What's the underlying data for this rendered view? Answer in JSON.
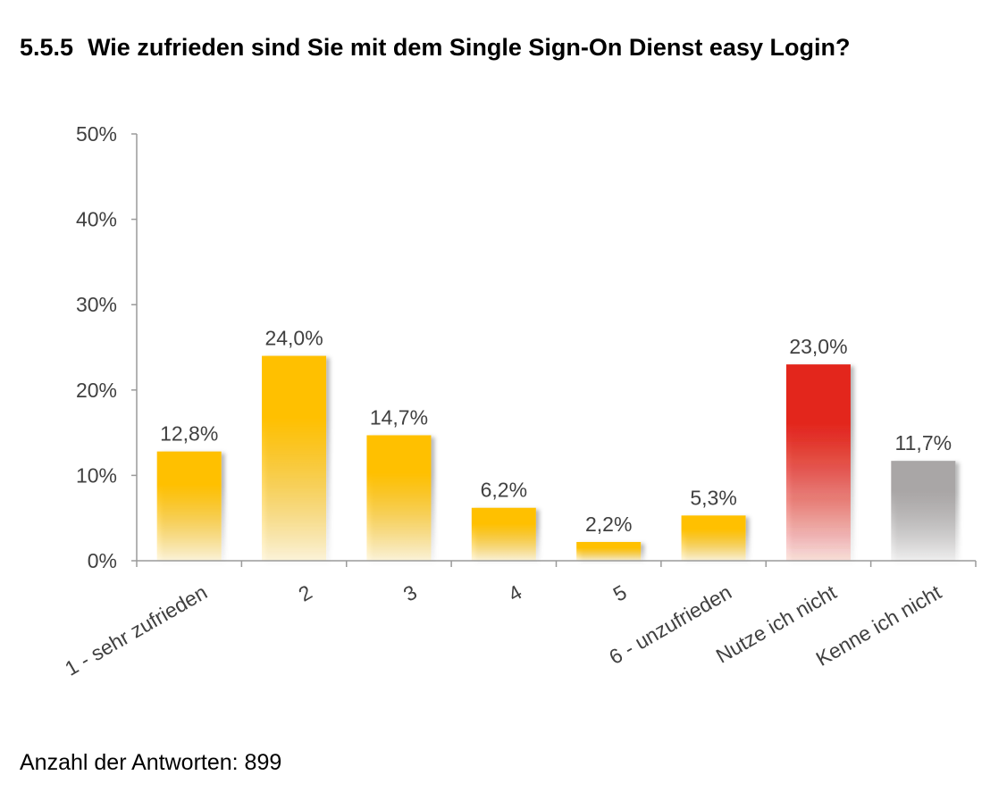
{
  "title": {
    "number": "5.5.5",
    "text": "Wie zufrieden sind Sie mit dem Single Sign-On Dienst easy Login?"
  },
  "footer": {
    "label": "Anzahl der Antworten: 899"
  },
  "colors": {
    "rating": "#FFC000",
    "not_used": "#E3251B",
    "unknown": "#A9A6A6",
    "axis": "#9A9A9A",
    "text": "#404040"
  },
  "chart_data": {
    "type": "bar",
    "title": "Wie zufrieden sind Sie mit dem Single Sign-On Dienst easy Login?",
    "xlabel": "",
    "ylabel": "",
    "categories": [
      "1 - sehr zufrieden",
      "2",
      "3",
      "4",
      "5",
      "6 - unzufrieden",
      "Nutze ich nicht",
      "Kenne ich nicht"
    ],
    "values": [
      12.8,
      24.0,
      14.7,
      6.2,
      2.2,
      5.3,
      23.0,
      11.7
    ],
    "value_labels": [
      "12,8%",
      "24,0%",
      "14,7%",
      "6,2%",
      "2,2%",
      "5,3%",
      "23,0%",
      "11,7%"
    ],
    "bar_colors": [
      "#FFC000",
      "#FFC000",
      "#FFC000",
      "#FFC000",
      "#FFC000",
      "#FFC000",
      "#E3251B",
      "#A9A6A6"
    ],
    "ylim": [
      0,
      50
    ],
    "yticks": [
      0,
      10,
      20,
      30,
      40,
      50
    ],
    "ytick_labels": [
      "0%",
      "10%",
      "20%",
      "30%",
      "40%",
      "50%"
    ],
    "grid": false,
    "legend": "none"
  }
}
